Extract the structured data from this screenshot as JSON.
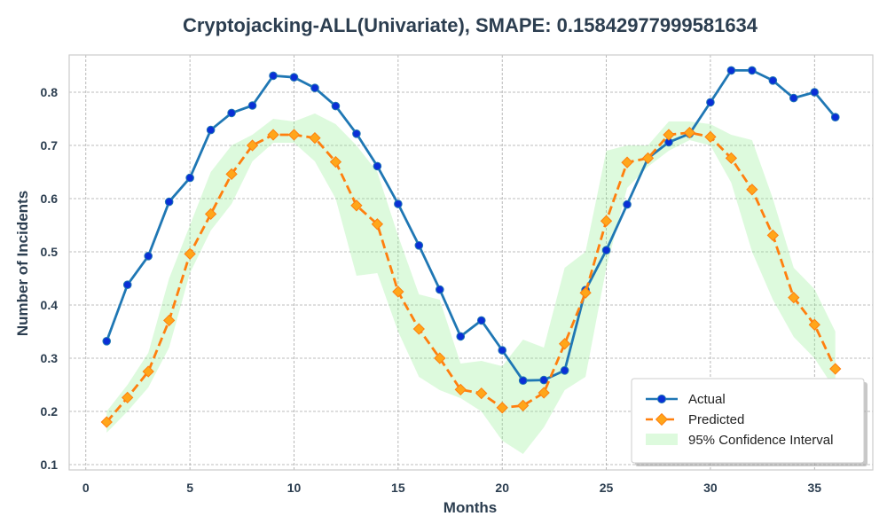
{
  "chart_data": {
    "type": "line",
    "title": "Cryptojacking-ALL(Univariate), SMAPE: 0.15842977999581634",
    "xlabel": "Months",
    "ylabel": "Number of Incidents",
    "xlim": [
      -0.8,
      37.8
    ],
    "ylim": [
      0.09,
      0.87
    ],
    "xticks": [
      0,
      5,
      10,
      15,
      20,
      25,
      30,
      35
    ],
    "yticks": [
      0.1,
      0.2,
      0.3,
      0.4,
      0.5,
      0.6,
      0.7,
      0.8
    ],
    "grid": true,
    "legend_position": "bottom-right",
    "x": [
      1,
      2,
      3,
      4,
      5,
      6,
      7,
      8,
      9,
      10,
      11,
      12,
      13,
      14,
      15,
      16,
      17,
      18,
      19,
      20,
      21,
      22,
      23,
      24,
      25,
      26,
      27,
      28,
      29,
      30,
      31,
      32,
      33,
      34,
      35,
      36
    ],
    "series": [
      {
        "name": "Actual",
        "color": "#1f77b4",
        "marker_color": "#0a2fd6",
        "values": [
          0.332,
          0.438,
          0.492,
          0.594,
          0.639,
          0.729,
          0.761,
          0.775,
          0.831,
          0.828,
          0.808,
          0.774,
          0.722,
          0.661,
          0.59,
          0.512,
          0.429,
          0.341,
          0.371,
          0.315,
          0.258,
          0.259,
          0.277,
          0.428,
          0.503,
          0.589,
          0.676,
          0.706,
          0.722,
          0.781,
          0.841,
          0.841,
          0.822,
          0.789,
          0.8,
          0.753
        ]
      },
      {
        "name": "Predicted",
        "color": "#ff7f0e",
        "marker_color": "#ffa61a",
        "values": [
          0.18,
          0.226,
          0.275,
          0.371,
          0.496,
          0.571,
          0.646,
          0.7,
          0.72,
          0.72,
          0.714,
          0.669,
          0.587,
          0.552,
          0.425,
          0.355,
          0.3,
          0.241,
          0.234,
          0.207,
          0.211,
          0.235,
          0.327,
          0.423,
          0.558,
          0.668,
          0.676,
          0.72,
          0.724,
          0.716,
          0.676,
          0.617,
          0.531,
          0.414,
          0.363,
          0.28
        ]
      }
    ],
    "confidence_interval": {
      "name": "95% Confidence Interval",
      "color": "#90ee90",
      "upper": [
        0.2,
        0.25,
        0.31,
        0.45,
        0.55,
        0.65,
        0.7,
        0.72,
        0.75,
        0.745,
        0.76,
        0.74,
        0.7,
        0.65,
        0.53,
        0.42,
        0.41,
        0.29,
        0.295,
        0.285,
        0.335,
        0.32,
        0.47,
        0.5,
        0.69,
        0.7,
        0.7,
        0.745,
        0.745,
        0.74,
        0.72,
        0.71,
        0.6,
        0.47,
        0.43,
        0.35
      ],
      "lower": [
        0.16,
        0.2,
        0.245,
        0.32,
        0.46,
        0.54,
        0.59,
        0.67,
        0.705,
        0.705,
        0.67,
        0.6,
        0.455,
        0.46,
        0.35,
        0.265,
        0.24,
        0.225,
        0.2,
        0.145,
        0.12,
        0.17,
        0.24,
        0.265,
        0.47,
        0.62,
        0.66,
        0.69,
        0.71,
        0.7,
        0.63,
        0.5,
        0.41,
        0.34,
        0.3,
        0.24
      ]
    }
  }
}
